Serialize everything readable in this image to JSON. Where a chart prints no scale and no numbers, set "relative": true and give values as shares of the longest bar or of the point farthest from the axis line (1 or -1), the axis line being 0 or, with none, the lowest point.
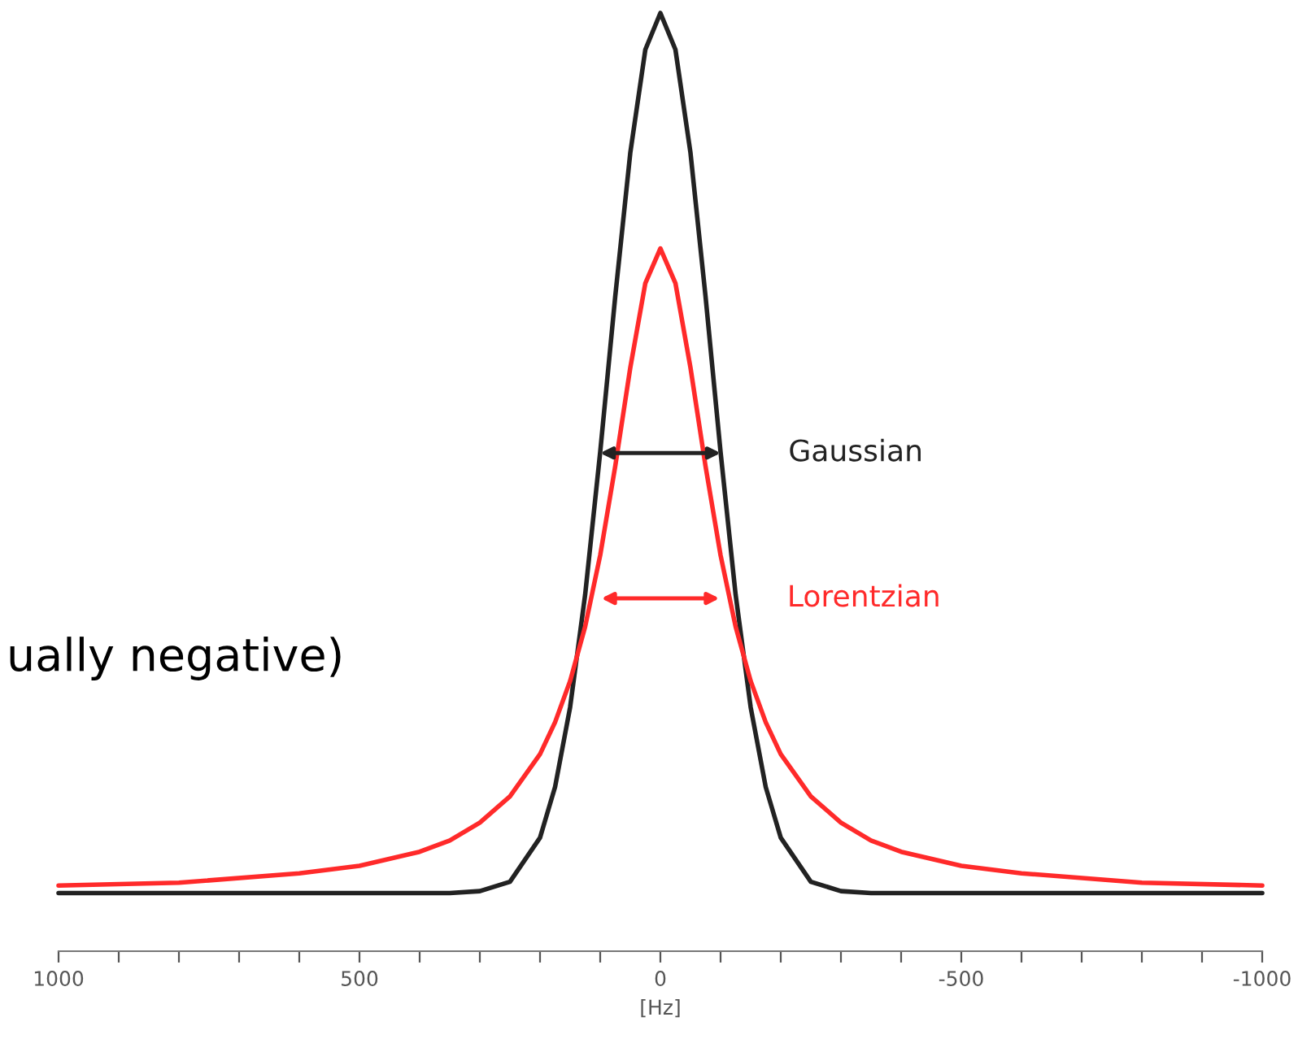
{
  "chart_data": {
    "type": "line",
    "relative": true,
    "xlabel": "[Hz]",
    "x": [
      1000,
      800,
      600,
      500,
      400,
      350,
      300,
      250,
      200,
      175,
      150,
      125,
      100,
      75,
      50,
      25,
      0,
      -25,
      -50,
      -75,
      -100,
      -125,
      -150,
      -175,
      -200,
      -250,
      -300,
      -350,
      -400,
      -500,
      -600,
      -800,
      -1000
    ],
    "series": [
      {
        "color": "#222222",
        "values": [
          0.062,
          0.062,
          0.062,
          0.062,
          0.062,
          0.062,
          0.064,
          0.074,
          0.121,
          0.175,
          0.26,
          0.38,
          0.532,
          0.698,
          0.851,
          0.961,
          1,
          0.961,
          0.851,
          0.698,
          0.532,
          0.38,
          0.26,
          0.175,
          0.121,
          0.074,
          0.064,
          0.062,
          0.062,
          0.062,
          0.062,
          0.062,
          0.062
        ]
      },
      {
        "color": "#ff2a2a",
        "values": [
          0.07,
          0.073,
          0.083,
          0.091,
          0.106,
          0.118,
          0.137,
          0.165,
          0.21,
          0.244,
          0.288,
          0.346,
          0.422,
          0.517,
          0.622,
          0.712,
          0.749,
          0.712,
          0.622,
          0.517,
          0.422,
          0.346,
          0.288,
          0.244,
          0.21,
          0.165,
          0.137,
          0.118,
          0.106,
          0.091,
          0.083,
          0.073,
          0.07
        ]
      }
    ],
    "xlim": [
      1000,
      -1000
    ],
    "xticks": [
      {
        "value": 1000,
        "label": "1000"
      },
      {
        "value": 900,
        "label": null
      },
      {
        "value": 800,
        "label": null
      },
      {
        "value": 700,
        "label": null
      },
      {
        "value": 600,
        "label": null
      },
      {
        "value": 500,
        "label": "500"
      },
      {
        "value": 400,
        "label": null
      },
      {
        "value": 300,
        "label": null
      },
      {
        "value": 200,
        "label": null
      },
      {
        "value": 100,
        "label": null
      },
      {
        "value": 0,
        "label": "0"
      },
      {
        "value": -100,
        "label": null
      },
      {
        "value": -200,
        "label": null
      },
      {
        "value": -300,
        "label": null
      },
      {
        "value": -400,
        "label": null
      },
      {
        "value": -500,
        "label": "-500"
      },
      {
        "value": -600,
        "label": null
      },
      {
        "value": -700,
        "label": null
      },
      {
        "value": -800,
        "label": null
      },
      {
        "value": -900,
        "label": null
      },
      {
        "value": -1000,
        "label": "-1000"
      }
    ],
    "grid": false,
    "legend": false,
    "annotations": [
      {
        "text": "Gaussian",
        "x": -100,
        "y": 0.531
      },
      {
        "text": "Lorentzian",
        "x": -98,
        "y": 0.376
      },
      "ually negative)"
    ]
  }
}
